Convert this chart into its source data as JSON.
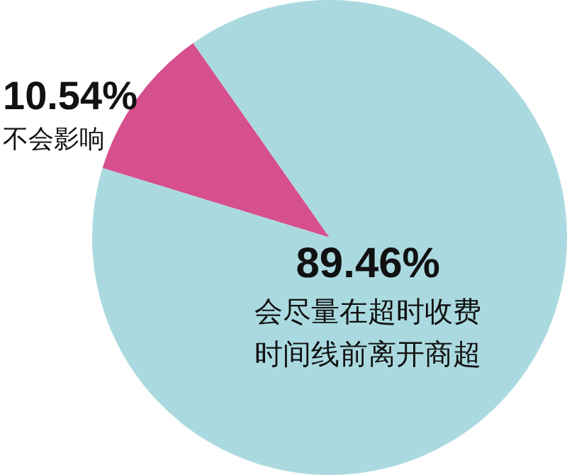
{
  "chart_data": {
    "type": "pie",
    "categories": [
      "不会影响",
      "会尽量在超时收费时间线前离开商超"
    ],
    "values": [
      10.54,
      89.46
    ],
    "colors": [
      "#d6508d",
      "#aadadf"
    ],
    "value_labels": [
      "10.54%",
      "89.46%"
    ],
    "legend": false
  }
}
